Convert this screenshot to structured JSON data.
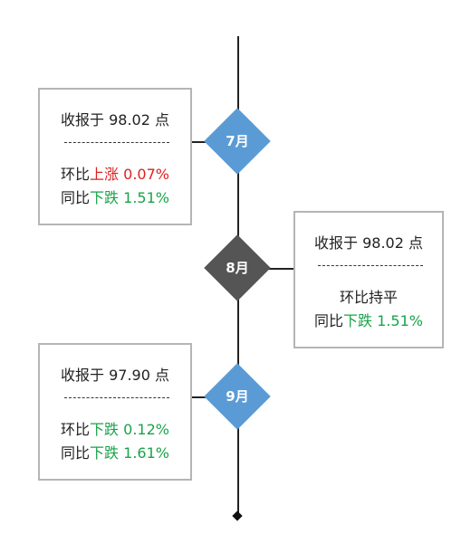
{
  "colors": {
    "diamond_blue": "#5b9bd5",
    "diamond_dark": "#555555",
    "up": "#e02020",
    "down": "#1aa34a"
  },
  "entries": [
    {
      "month": "7月",
      "close": "收报于 98.02 点",
      "mom_prefix": "环比",
      "mom_dir": "上涨",
      "mom_val": " 0.07%",
      "yoy_prefix": "同比",
      "yoy_dir": "下跌",
      "yoy_val": " 1.51%"
    },
    {
      "month": "8月",
      "close": "收报于 98.02 点",
      "mom_prefix": "环比持平",
      "yoy_prefix": "同比",
      "yoy_dir": "下跌",
      "yoy_val": " 1.51%"
    },
    {
      "month": "9月",
      "close": "收报于 97.90 点",
      "mom_prefix": "环比",
      "mom_dir": "下跌",
      "mom_val": " 0.12%",
      "yoy_prefix": "同比",
      "yoy_dir": "下跌",
      "yoy_val": " 1.61%"
    }
  ]
}
